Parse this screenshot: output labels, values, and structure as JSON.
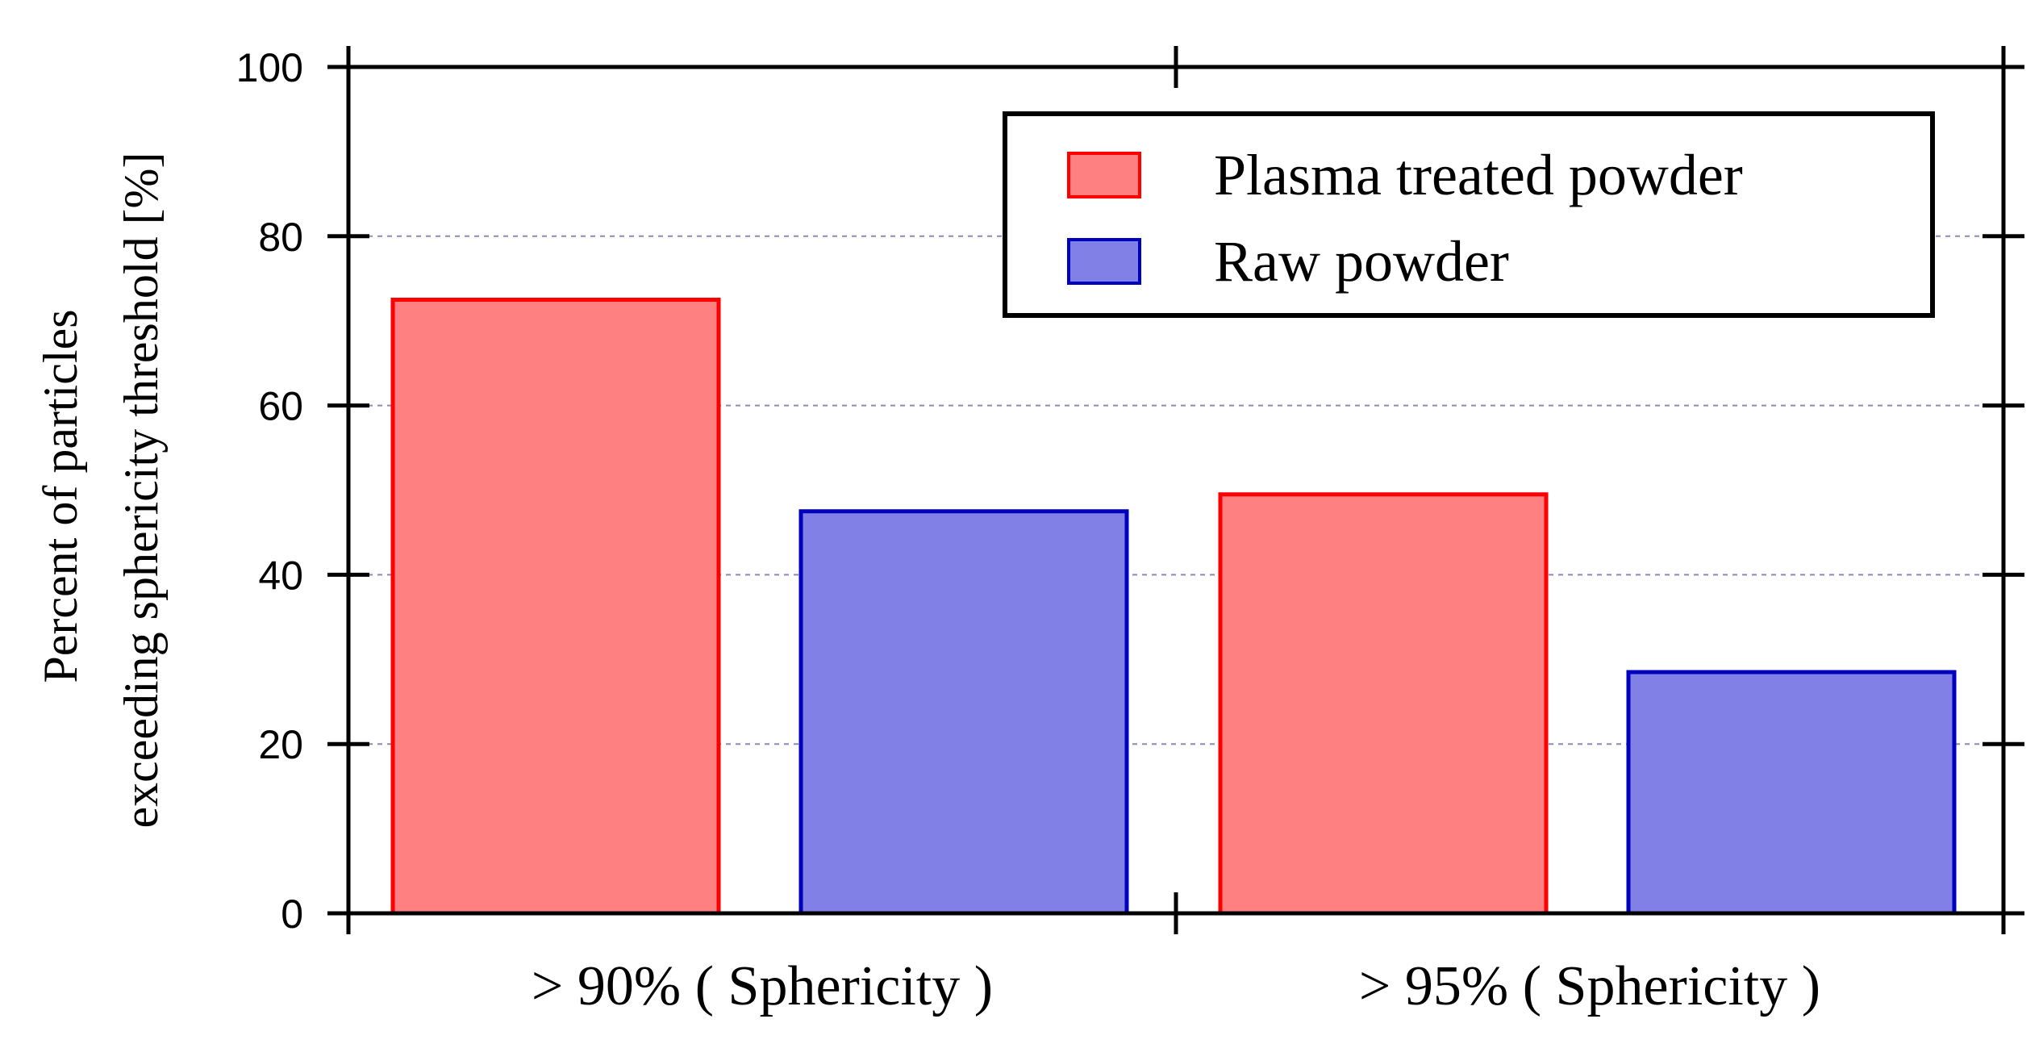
{
  "chart_data": {
    "type": "bar",
    "categories": [
      "> 90% ( Sphericity )",
      "> 95% ( Sphericity )"
    ],
    "series": [
      {
        "name": "Plasma treated powder",
        "values": [
          72.5,
          49.5
        ],
        "fill": "#ff8080",
        "stroke": "#ff0000"
      },
      {
        "name": "Raw powder",
        "values": [
          47.5,
          28.5
        ],
        "fill": "#8080e6",
        "stroke": "#0000bf"
      }
    ],
    "ylabel_lines": [
      "Percent of particles",
      "exceeding sphericity threshold [%]"
    ],
    "ylim": [
      0,
      100
    ],
    "yticks": [
      0,
      20,
      40,
      60,
      80,
      100
    ],
    "grid": true,
    "legend_position": "top-right"
  }
}
